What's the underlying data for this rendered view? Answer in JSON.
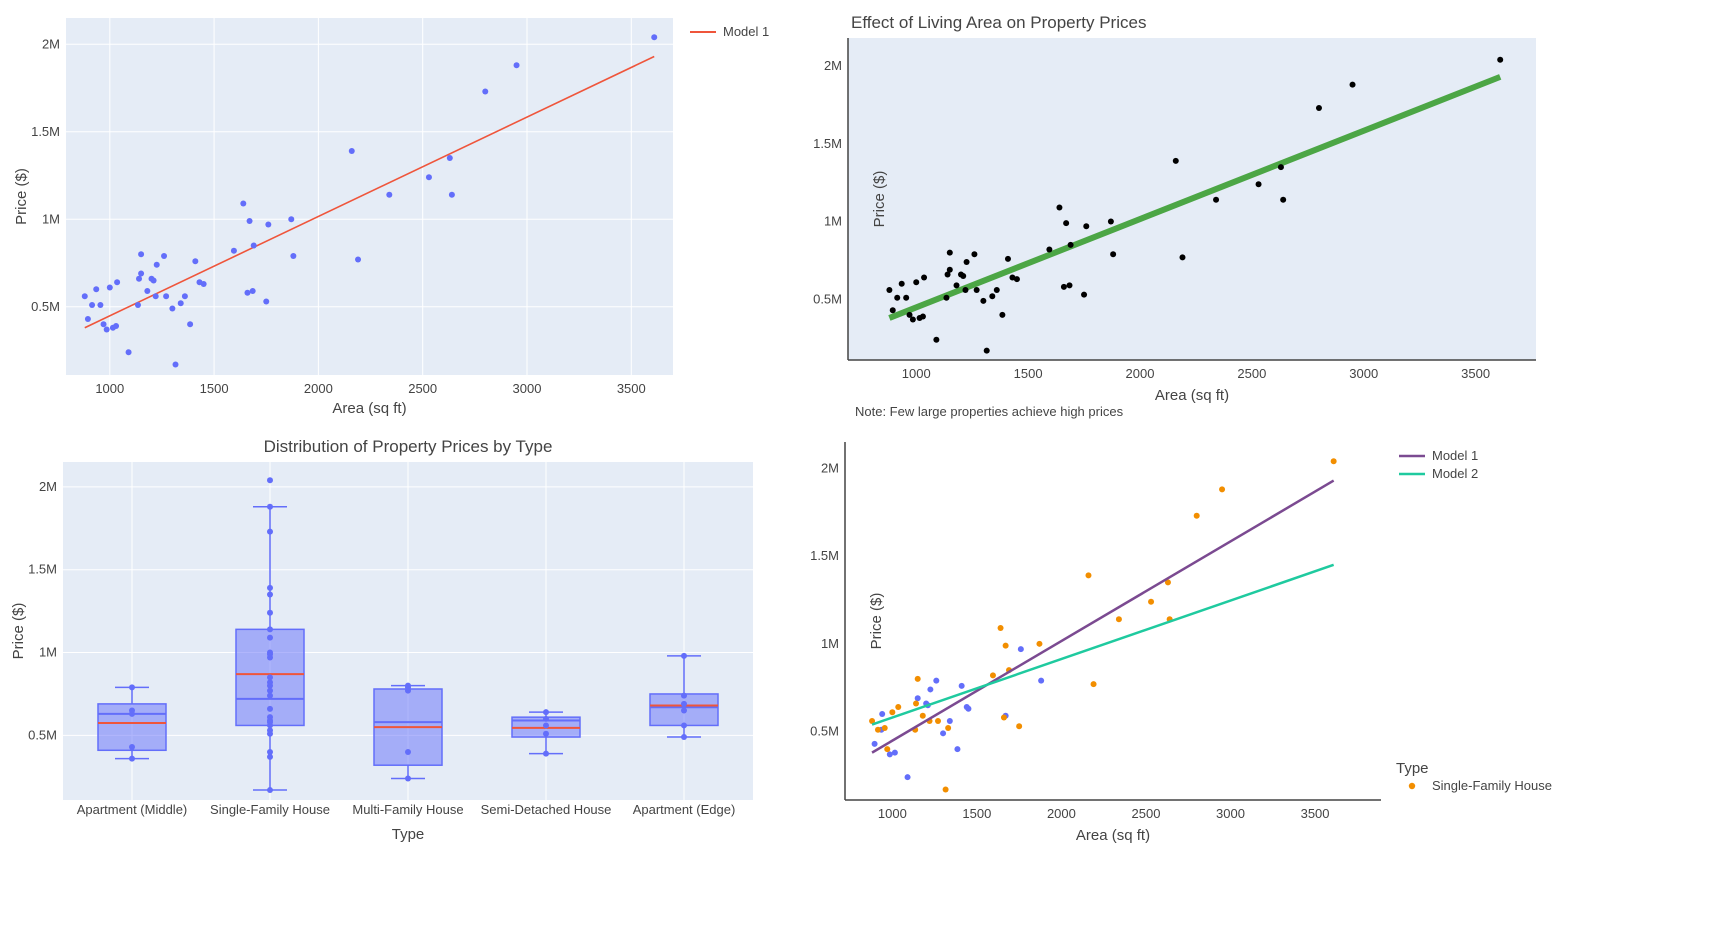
{
  "colors": {
    "plot_bg": "#e5ecf6",
    "grid": "#ffffff",
    "blue": "#636efa",
    "red": "#ef553b",
    "green": "#4ca645",
    "black": "#000000",
    "purple": "#7b4a91",
    "teal": "#1fca9f",
    "orange": "#f28e00",
    "box_fill": "rgba(99,110,250,0.5)",
    "axis_line": "#444444"
  },
  "chart_data": [
    {
      "id": "p1",
      "type": "scatter",
      "title": "",
      "xlabel": "Area (sq ft)",
      "ylabel": "Price ($)",
      "xlim": [
        790,
        3700
      ],
      "ylim": [
        110000,
        2150000
      ],
      "xticks": [
        1000,
        1500,
        2000,
        2500,
        3000,
        3500
      ],
      "xtick_labels": [
        "1000",
        "1500",
        "2000",
        "2500",
        "3000",
        "3500"
      ],
      "yticks": [
        500000,
        1000000,
        1500000,
        2000000
      ],
      "ytick_labels": [
        "0.5M",
        "1M",
        "1.5M",
        "2M"
      ],
      "legend": [
        "Model 1"
      ],
      "points": [
        [
          880,
          560000
        ],
        [
          895,
          430000
        ],
        [
          915,
          510000
        ],
        [
          935,
          600000
        ],
        [
          955,
          510000
        ],
        [
          970,
          400000
        ],
        [
          985,
          370000
        ],
        [
          1000,
          610000
        ],
        [
          1015,
          380000
        ],
        [
          1035,
          640000
        ],
        [
          1030,
          390000
        ],
        [
          1090,
          240000
        ],
        [
          1135,
          510000
        ],
        [
          1140,
          660000
        ],
        [
          1150,
          690000
        ],
        [
          1150,
          800000
        ],
        [
          1180,
          590000
        ],
        [
          1200,
          660000
        ],
        [
          1210,
          650000
        ],
        [
          1220,
          560000
        ],
        [
          1225,
          740000
        ],
        [
          1260,
          790000
        ],
        [
          1270,
          560000
        ],
        [
          1300,
          490000
        ],
        [
          1315,
          170000
        ],
        [
          1340,
          520000
        ],
        [
          1360,
          560000
        ],
        [
          1385,
          400000
        ],
        [
          1410,
          760000
        ],
        [
          1430,
          640000
        ],
        [
          1450,
          630000
        ],
        [
          1595,
          820000
        ],
        [
          1640,
          1090000
        ],
        [
          1660,
          580000
        ],
        [
          1670,
          990000
        ],
        [
          1685,
          590000
        ],
        [
          1690,
          850000
        ],
        [
          1750,
          530000
        ],
        [
          1760,
          970000
        ],
        [
          1870,
          1000000
        ],
        [
          1880,
          790000
        ],
        [
          2160,
          1390000
        ],
        [
          2190,
          770000
        ],
        [
          2340,
          1140000
        ],
        [
          2530,
          1240000
        ],
        [
          2630,
          1350000
        ],
        [
          2640,
          1140000
        ],
        [
          2800,
          1730000
        ],
        [
          2950,
          1880000
        ],
        [
          3610,
          2040000
        ]
      ],
      "lines": [
        {
          "name": "Model 1",
          "color_key": "red",
          "x": [
            880,
            3610
          ],
          "y": [
            380000,
            1930000
          ]
        }
      ]
    },
    {
      "id": "p2",
      "type": "scatter",
      "title": "Effect of Living Area on Property Prices",
      "xlabel": "Area (sq ft)",
      "ylabel": "Price ($)",
      "annotation": "Note: Few large properties achieve high prices",
      "xlim": [
        695,
        3770
      ],
      "ylim": [
        110000,
        2180000
      ],
      "xticks": [
        1000,
        1500,
        2000,
        2500,
        3000,
        3500
      ],
      "xtick_labels": [
        "1000",
        "1500",
        "2000",
        "2500",
        "3000",
        "3500"
      ],
      "yticks": [
        500000,
        1000000,
        1500000,
        2000000
      ],
      "ytick_labels": [
        "0.5M",
        "1M",
        "1.5M",
        "2M"
      ],
      "points": [
        [
          880,
          560000
        ],
        [
          895,
          430000
        ],
        [
          915,
          510000
        ],
        [
          935,
          600000
        ],
        [
          955,
          510000
        ],
        [
          970,
          400000
        ],
        [
          985,
          370000
        ],
        [
          1000,
          610000
        ],
        [
          1015,
          380000
        ],
        [
          1035,
          640000
        ],
        [
          1030,
          390000
        ],
        [
          1090,
          240000
        ],
        [
          1135,
          510000
        ],
        [
          1140,
          660000
        ],
        [
          1150,
          690000
        ],
        [
          1150,
          800000
        ],
        [
          1180,
          590000
        ],
        [
          1200,
          660000
        ],
        [
          1210,
          650000
        ],
        [
          1220,
          560000
        ],
        [
          1225,
          740000
        ],
        [
          1260,
          790000
        ],
        [
          1270,
          560000
        ],
        [
          1300,
          490000
        ],
        [
          1315,
          170000
        ],
        [
          1340,
          520000
        ],
        [
          1360,
          560000
        ],
        [
          1385,
          400000
        ],
        [
          1410,
          760000
        ],
        [
          1430,
          640000
        ],
        [
          1450,
          630000
        ],
        [
          1595,
          820000
        ],
        [
          1640,
          1090000
        ],
        [
          1660,
          580000
        ],
        [
          1670,
          990000
        ],
        [
          1685,
          590000
        ],
        [
          1690,
          850000
        ],
        [
          1750,
          530000
        ],
        [
          1760,
          970000
        ],
        [
          1870,
          1000000
        ],
        [
          1880,
          790000
        ],
        [
          2160,
          1390000
        ],
        [
          2190,
          770000
        ],
        [
          2340,
          1140000
        ],
        [
          2530,
          1240000
        ],
        [
          2630,
          1350000
        ],
        [
          2640,
          1140000
        ],
        [
          2800,
          1730000
        ],
        [
          2950,
          1880000
        ],
        [
          3610,
          2040000
        ]
      ],
      "lines": [
        {
          "name": "fit",
          "color_key": "green",
          "x": [
            880,
            3610
          ],
          "y": [
            380000,
            1930000
          ]
        }
      ]
    },
    {
      "id": "p3",
      "type": "box",
      "title": "Distribution of Property Prices by Type",
      "xlabel": "Type",
      "ylabel": "Price ($)",
      "ylim": [
        110000,
        2150000
      ],
      "yticks": [
        500000,
        1000000,
        1500000,
        2000000
      ],
      "ytick_labels": [
        "0.5M",
        "1M",
        "1.5M",
        "2M"
      ],
      "categories": [
        "Apartment (Middle)",
        "Single-Family House",
        "Multi-Family House",
        "Semi-Detached House",
        "Apartment (Edge)"
      ],
      "boxes": [
        {
          "q1": 410000,
          "median": 630000,
          "q3": 690000,
          "lower": 360000,
          "upper": 790000,
          "mean": 575000,
          "points": [
            360000,
            430000,
            630000,
            650000,
            790000
          ]
        },
        {
          "q1": 560000,
          "median": 720000,
          "q3": 1140000,
          "lower": 170000,
          "upper": 1880000,
          "mean": 870000,
          "points": [
            170000,
            370000,
            400000,
            510000,
            530000,
            560000,
            580000,
            590000,
            610000,
            660000,
            740000,
            770000,
            800000,
            820000,
            850000,
            970000,
            990000,
            1000000,
            1090000,
            1140000,
            1240000,
            1350000,
            1390000,
            1730000,
            1880000,
            2040000
          ]
        },
        {
          "q1": 320000,
          "median": 580000,
          "q3": 780000,
          "lower": 240000,
          "upper": 800000,
          "mean": 550000,
          "points": [
            240000,
            400000,
            770000,
            790000,
            800000
          ]
        },
        {
          "q1": 490000,
          "median": 590000,
          "q3": 610000,
          "lower": 390000,
          "upper": 640000,
          "mean": 545000,
          "points": [
            390000,
            510000,
            560000,
            600000,
            640000
          ]
        },
        {
          "q1": 560000,
          "median": 670000,
          "q3": 750000,
          "lower": 490000,
          "upper": 980000,
          "mean": 680000,
          "points": [
            490000,
            560000,
            650000,
            690000,
            740000,
            980000
          ]
        }
      ]
    },
    {
      "id": "p4",
      "type": "scatter",
      "title": "",
      "xlabel": "Area (sq ft)",
      "ylabel": "Price ($)",
      "xlim": [
        720,
        3890
      ],
      "ylim": [
        110000,
        2150000
      ],
      "xticks": [
        1000,
        1500,
        2000,
        2500,
        3000,
        3500
      ],
      "xtick_labels": [
        "1000",
        "1500",
        "2000",
        "2500",
        "3000",
        "3500"
      ],
      "yticks": [
        500000,
        1000000,
        1500000,
        2000000
      ],
      "ytick_labels": [
        "0.5M",
        "1M",
        "1.5M",
        "2M"
      ],
      "legend": [
        "Model 1",
        "Model 2"
      ],
      "legend_group_title": "Type",
      "legend_group_item": "Single-Family House",
      "points_blue": [
        [
          895,
          430000
        ],
        [
          935,
          510000
        ],
        [
          985,
          370000
        ],
        [
          1015,
          380000
        ],
        [
          1090,
          240000
        ],
        [
          1150,
          690000
        ],
        [
          1200,
          660000
        ],
        [
          1210,
          650000
        ],
        [
          1225,
          740000
        ],
        [
          1260,
          790000
        ],
        [
          1300,
          490000
        ],
        [
          1340,
          560000
        ],
        [
          1385,
          400000
        ],
        [
          1410,
          760000
        ],
        [
          1450,
          630000
        ],
        [
          1440,
          640000
        ],
        [
          1670,
          590000
        ],
        [
          1760,
          970000
        ],
        [
          1880,
          790000
        ],
        [
          940,
          600000
        ]
      ],
      "points_orange": [
        [
          880,
          560000
        ],
        [
          915,
          510000
        ],
        [
          955,
          520000
        ],
        [
          970,
          400000
        ],
        [
          1000,
          610000
        ],
        [
          1035,
          640000
        ],
        [
          1135,
          510000
        ],
        [
          1140,
          660000
        ],
        [
          1150,
          800000
        ],
        [
          1180,
          590000
        ],
        [
          1220,
          560000
        ],
        [
          1270,
          560000
        ],
        [
          1315,
          170000
        ],
        [
          1330,
          520000
        ],
        [
          1595,
          820000
        ],
        [
          1640,
          1090000
        ],
        [
          1660,
          580000
        ],
        [
          1670,
          990000
        ],
        [
          1690,
          850000
        ],
        [
          1750,
          530000
        ],
        [
          1870,
          1000000
        ],
        [
          2160,
          1390000
        ],
        [
          2190,
          770000
        ],
        [
          2340,
          1140000
        ],
        [
          2530,
          1240000
        ],
        [
          2630,
          1350000
        ],
        [
          2640,
          1140000
        ],
        [
          2800,
          1730000
        ],
        [
          2950,
          1880000
        ],
        [
          3610,
          2040000
        ]
      ],
      "lines": [
        {
          "name": "Model 1",
          "color_key": "purple",
          "x": [
            880,
            3610
          ],
          "y": [
            380000,
            1930000
          ]
        },
        {
          "name": "Model 2",
          "color_key": "teal",
          "x": [
            880,
            3610
          ],
          "y": [
            540000,
            1450000
          ]
        }
      ]
    }
  ]
}
